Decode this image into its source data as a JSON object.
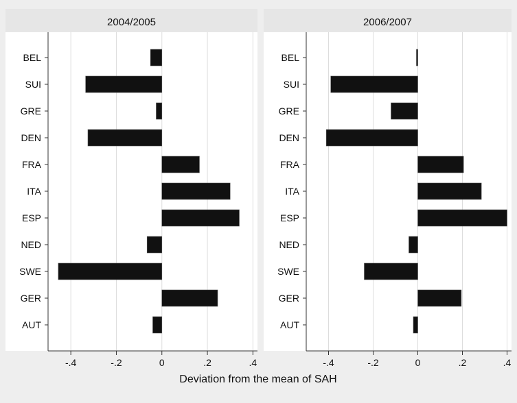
{
  "figure": {
    "xlabel": "Deviation from the mean of SAH"
  },
  "colors": {
    "background": "#eeeeee",
    "panel": "#ffffff",
    "strip": "#e6e6e6",
    "bar": "#111111",
    "grid": "#dddddd"
  },
  "chart_data": [
    {
      "type": "bar",
      "orientation": "horizontal",
      "title": "2004/2005",
      "categories": [
        "BEL",
        "SUI",
        "GRE",
        "DEN",
        "FRA",
        "ITA",
        "ESP",
        "NED",
        "SWE",
        "GER",
        "AUT"
      ],
      "values": [
        -0.05,
        -0.335,
        -0.025,
        -0.325,
        0.165,
        0.3,
        0.34,
        -0.065,
        -0.455,
        0.245,
        -0.04
      ],
      "xlim": [
        -0.5,
        0.42
      ],
      "xticks": [
        -0.4,
        -0.2,
        0,
        0.2,
        0.4
      ],
      "xticklabels": [
        "-.4",
        "-.2",
        "0",
        ".2",
        ".4"
      ],
      "grid": true
    },
    {
      "type": "bar",
      "orientation": "horizontal",
      "title": "2006/2007",
      "categories": [
        "BEL",
        "SUI",
        "GRE",
        "DEN",
        "FRA",
        "ITA",
        "ESP",
        "NED",
        "SWE",
        "GER",
        "AUT"
      ],
      "values": [
        -0.003,
        -0.39,
        -0.12,
        -0.41,
        0.205,
        0.285,
        0.4,
        -0.04,
        -0.24,
        0.195,
        -0.02
      ],
      "xlim": [
        -0.5,
        0.42
      ],
      "xticks": [
        -0.4,
        -0.2,
        0,
        0.2,
        0.4
      ],
      "xticklabels": [
        "-.4",
        "-.2",
        "0",
        ".2",
        ".4"
      ],
      "grid": true
    }
  ]
}
